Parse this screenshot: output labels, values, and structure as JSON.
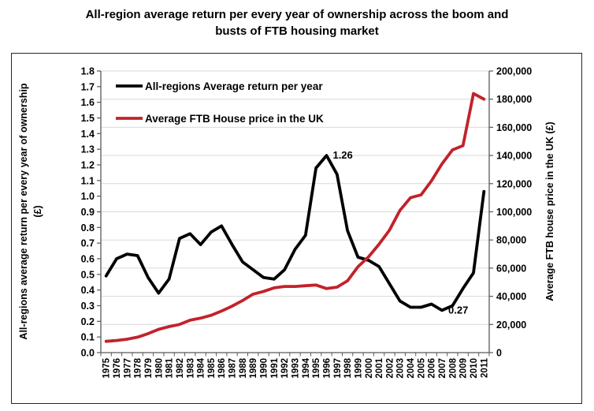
{
  "title": "All-region average return per every year of ownership across the boom and busts of FTB housing market",
  "title_lines": [
    "All-region average return per every year of ownership across the boom and",
    "busts of FTB housing market"
  ],
  "chart_data": {
    "type": "line",
    "title": "All-region average return per every year of ownership across the boom and busts of FTB housing market",
    "x": [
      1975,
      1976,
      1977,
      1978,
      1979,
      1980,
      1981,
      1982,
      1983,
      1984,
      1985,
      1986,
      1987,
      1988,
      1989,
      1990,
      1991,
      1992,
      1993,
      1994,
      1995,
      1996,
      1997,
      1998,
      1999,
      2000,
      2001,
      2002,
      2003,
      2004,
      2005,
      2006,
      2007,
      2008,
      2009,
      2010,
      2011
    ],
    "series": [
      {
        "name": "All-regions Average return per year",
        "color": "#000000",
        "axis": "left",
        "values": [
          0.49,
          0.6,
          0.63,
          0.62,
          0.48,
          0.38,
          0.47,
          0.73,
          0.76,
          0.69,
          0.77,
          0.81,
          0.69,
          0.58,
          0.53,
          0.48,
          0.47,
          0.53,
          0.66,
          0.75,
          1.18,
          1.26,
          1.14,
          0.78,
          0.61,
          0.59,
          0.55,
          0.44,
          0.33,
          0.29,
          0.29,
          0.31,
          0.27,
          0.3,
          0.41,
          0.51,
          1.03
        ]
      },
      {
        "name": "Average FTB House price in the UK",
        "color": "#C2222B",
        "axis": "right",
        "values": [
          8000,
          8600,
          9500,
          11000,
          13500,
          16500,
          18500,
          20000,
          23000,
          24500,
          26500,
          29500,
          33000,
          37000,
          41500,
          43500,
          46000,
          47000,
          47000,
          47500,
          48000,
          45500,
          46500,
          51000,
          61000,
          68000,
          77000,
          87000,
          101000,
          110000,
          112000,
          122000,
          134000,
          144000,
          147000,
          184000,
          180000
        ]
      }
    ],
    "left_axis": {
      "label": "All-regions average return per every year of ownership (£)",
      "label_lines": [
        "All-regions average return per every year of ownership",
        "(£)"
      ],
      "min": 0,
      "max": 1.8,
      "step": 0.1
    },
    "right_axis": {
      "label": "Average FTB house price in the UK (£)",
      "min": 0,
      "max": 200000,
      "step": 20000
    },
    "x_axis": {
      "labels": [
        "1975",
        "1976",
        "1977",
        "1978",
        "1979",
        "1980",
        "1981",
        "1982",
        "1983",
        "1984",
        "1985",
        "1986",
        "1987",
        "1988",
        "1989",
        "1990",
        "1991",
        "1992",
        "1993",
        "1994",
        "1995",
        "1996",
        "1997",
        "1998",
        "1999",
        "2000",
        "2001",
        "2002",
        "2003",
        "2004",
        "2005",
        "2006",
        "2007",
        "2008",
        "2009",
        "2010",
        "2011"
      ]
    },
    "annotations": [
      {
        "text": "1.26",
        "year": 1996,
        "value": 1.26
      },
      {
        "text": "0.27",
        "year": 2007,
        "value": 0.27
      }
    ],
    "legend_position": "top-left-inside",
    "grid": "horizontal",
    "grid_color": "#d9d9d9",
    "axis_color": "#595959"
  }
}
